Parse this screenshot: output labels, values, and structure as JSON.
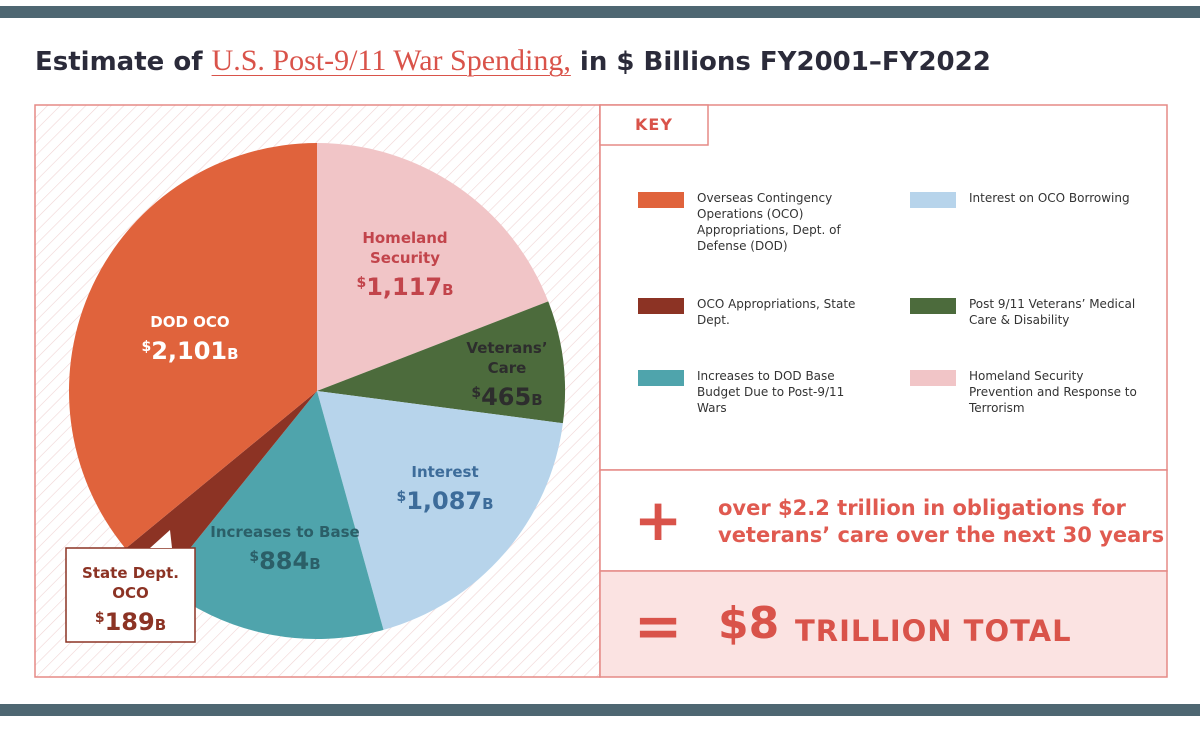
{
  "chart_data": {
    "type": "pie",
    "title_prefix": "Estimate of",
    "title_highlight": "U.S. Post-9/11 War Spending,",
    "title_suffix": "in $ Billions FY2001–FY2022",
    "categories": [
      "Homeland Security",
      "Veterans’ Care",
      "Interest",
      "Increases to Base",
      "State Dept. OCO",
      "DOD OCO"
    ],
    "values": [
      1117,
      465,
      1087,
      884,
      189,
      2101
    ],
    "value_labels": [
      "$1,117B",
      "$465B",
      "$1,087B",
      "$884B",
      "$189B",
      "$2,101B"
    ],
    "colors": [
      "#f1c5c7",
      "#4c6b3c",
      "#b7d4eb",
      "#4fa4ac",
      "#8c3324",
      "#e0633c"
    ],
    "legend_title": "KEY",
    "legend_labels": [
      "Homeland Security Prevention and Response to Terrorism",
      "Post 9/11 Veterans’ Medical Care & Disability",
      "Interest on OCO Borrowing",
      "Increases to DOD Base Budget Due to Post-9/11 Wars",
      "OCO Appropriations, State Dept.",
      "Overseas Contingency Operations (OCO) Appropriations, Dept. of Defense (DOD)"
    ],
    "plus_symbol": "+",
    "plus_text": [
      "over $2.2 trillion in obligations for",
      "veterans’ care over the next 30 years"
    ],
    "total_symbol": "=",
    "total_amount": "$8",
    "total_text": "TRILLION TOTAL"
  }
}
